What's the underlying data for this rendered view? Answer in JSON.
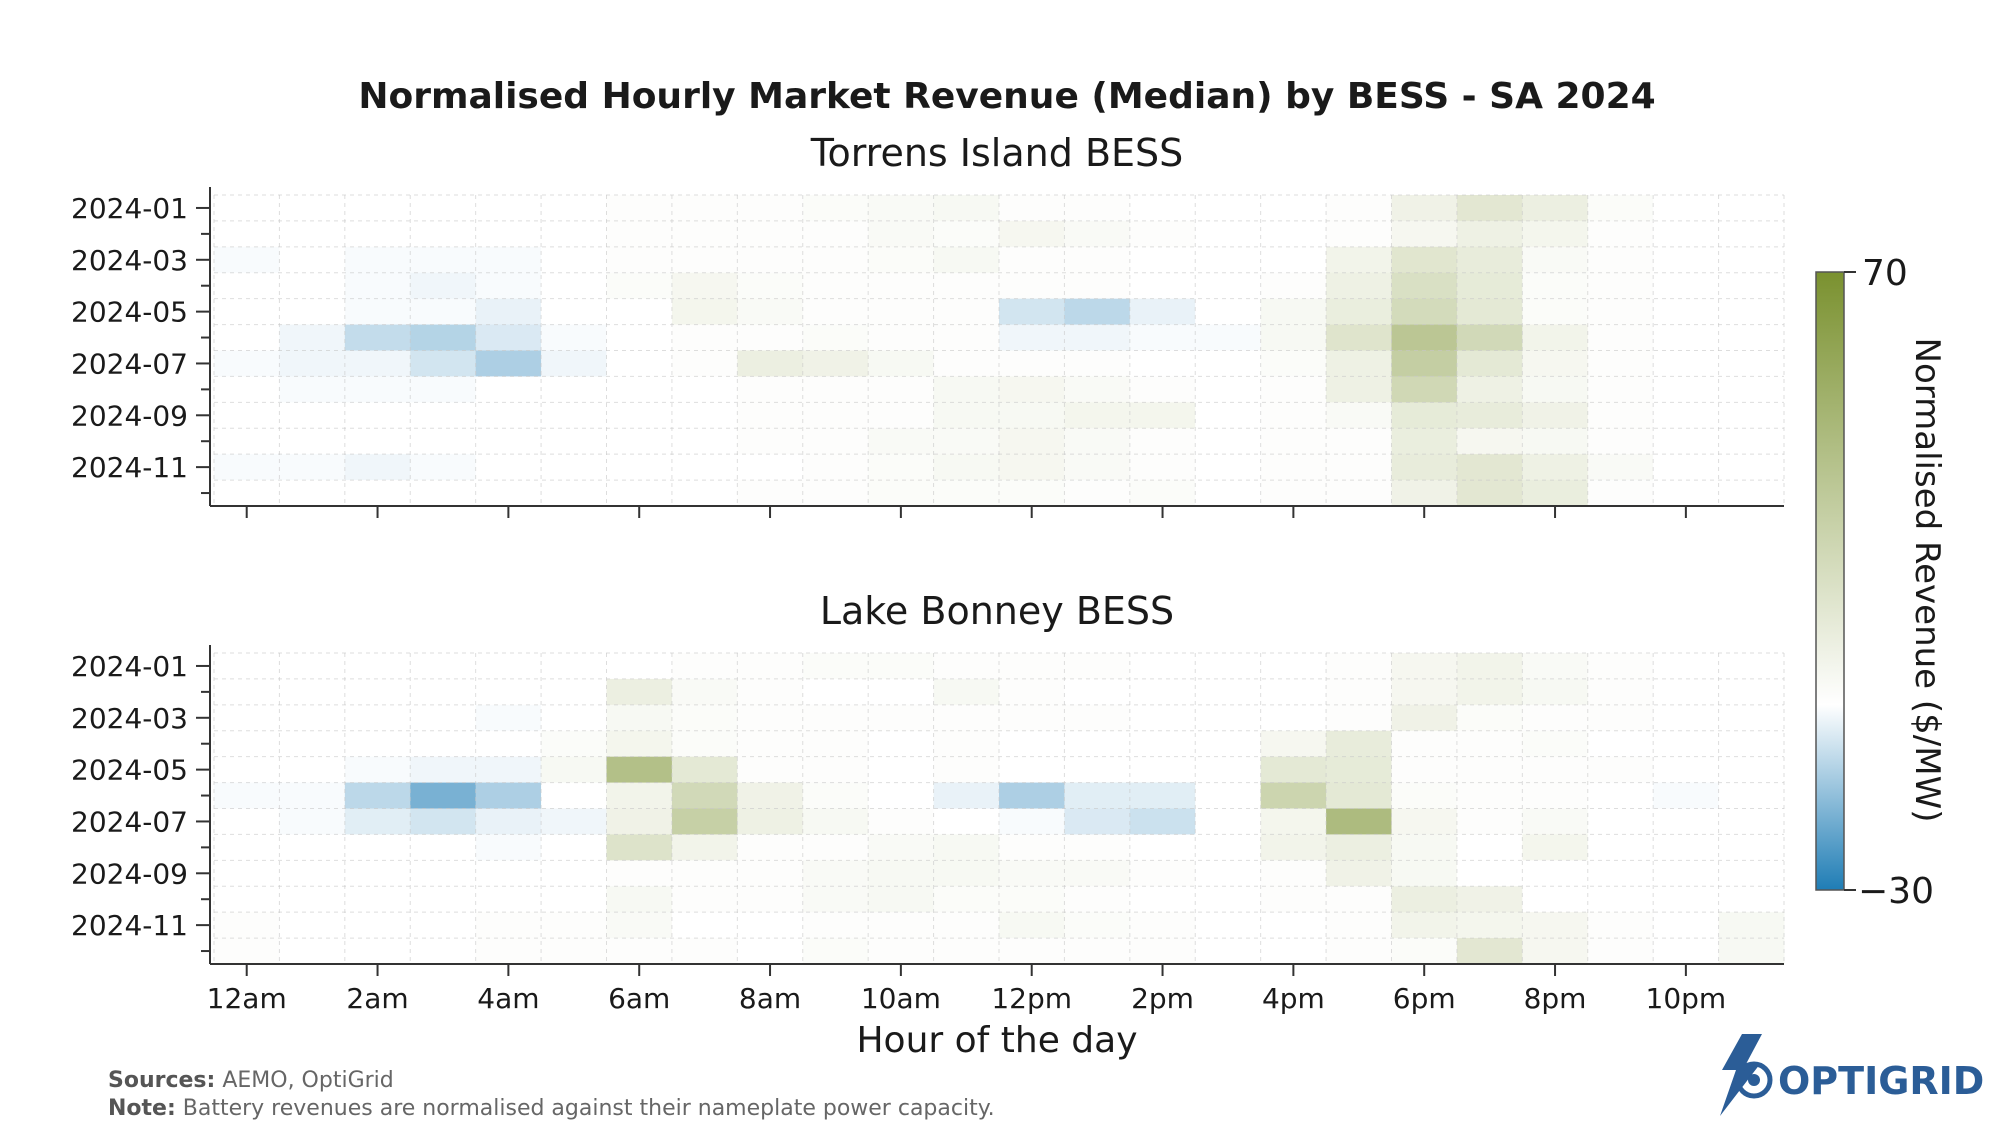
{
  "chart_data": {
    "type": "heatmap",
    "title": "Normalised Hourly Market Revenue (Median) by BESS - SA 2024",
    "xlabel": "Hour of the day",
    "x_ticks": [
      "12am",
      "2am",
      "4am",
      "6am",
      "8am",
      "10am",
      "12pm",
      "2pm",
      "4pm",
      "6pm",
      "8pm",
      "10pm"
    ],
    "y_ticks": [
      "2024-01",
      "2024-03",
      "2024-05",
      "2024-07",
      "2024-09",
      "2024-11"
    ],
    "rows": [
      "2024-01",
      "2024-02",
      "2024-03",
      "2024-04",
      "2024-05",
      "2024-06",
      "2024-07",
      "2024-08",
      "2024-09",
      "2024-10",
      "2024-11",
      "2024-12"
    ],
    "hours": [
      0,
      1,
      2,
      3,
      4,
      5,
      6,
      7,
      8,
      9,
      10,
      11,
      12,
      13,
      14,
      15,
      16,
      17,
      18,
      19,
      20,
      21,
      22,
      23
    ],
    "colorbar": {
      "label": "Normalised Revenue ($/MW)",
      "min": -30,
      "max": 70,
      "min_label": "−30",
      "max_label": "70",
      "colors": {
        "low": "#1f7db5",
        "mid": "#ffffff",
        "high": "#7a912f"
      }
    },
    "panels": [
      {
        "name": "Torrens Island BESS",
        "values": [
          [
            0,
            0,
            0,
            0,
            0,
            0,
            1,
            1,
            1,
            2,
            3,
            4,
            1,
            1,
            0,
            0,
            0,
            1,
            8,
            15,
            10,
            2,
            0,
            0
          ],
          [
            0,
            0,
            0,
            0,
            0,
            0,
            1,
            1,
            1,
            1,
            3,
            2,
            5,
            3,
            1,
            0,
            0,
            1,
            5,
            9,
            6,
            1,
            0,
            0
          ],
          [
            -1,
            0,
            -1,
            -1,
            -1,
            0,
            1,
            1,
            1,
            1,
            2,
            4,
            1,
            1,
            0,
            0,
            0,
            7,
            16,
            12,
            3,
            1,
            0,
            0
          ],
          [
            0,
            0,
            -1,
            -2,
            -1,
            0,
            2,
            5,
            2,
            1,
            1,
            1,
            1,
            1,
            0,
            0,
            1,
            9,
            20,
            13,
            2,
            1,
            0,
            0
          ],
          [
            0,
            0,
            -1,
            -1,
            -3,
            0,
            0,
            6,
            3,
            1,
            1,
            1,
            -6,
            -9,
            -3,
            0,
            4,
            11,
            23,
            14,
            2,
            1,
            0,
            0
          ],
          [
            0,
            -2,
            -8,
            -10,
            -5,
            -1,
            0,
            1,
            1,
            2,
            1,
            1,
            -2,
            -2,
            -1,
            -1,
            4,
            17,
            36,
            24,
            7,
            1,
            0,
            0
          ],
          [
            -1,
            -2,
            -2,
            -6,
            -11,
            -2,
            0,
            1,
            10,
            8,
            4,
            1,
            1,
            1,
            0,
            0,
            2,
            9,
            31,
            14,
            5,
            1,
            0,
            0
          ],
          [
            0,
            -1,
            -1,
            -1,
            0,
            0,
            0,
            0,
            1,
            1,
            1,
            4,
            5,
            3,
            1,
            0,
            1,
            9,
            25,
            9,
            4,
            1,
            0,
            0
          ],
          [
            0,
            0,
            0,
            0,
            0,
            0,
            0,
            0,
            1,
            1,
            1,
            4,
            4,
            6,
            6,
            0,
            1,
            3,
            13,
            12,
            8,
            1,
            0,
            0
          ],
          [
            0,
            0,
            0,
            0,
            0,
            0,
            0,
            0,
            1,
            1,
            3,
            3,
            5,
            3,
            1,
            0,
            1,
            1,
            11,
            5,
            4,
            1,
            0,
            0
          ],
          [
            -1,
            -1,
            -2,
            -1,
            0,
            0,
            0,
            0,
            0,
            1,
            2,
            4,
            5,
            3,
            1,
            0,
            1,
            1,
            12,
            15,
            9,
            3,
            0,
            0
          ],
          [
            0,
            0,
            0,
            0,
            0,
            0,
            0,
            0,
            1,
            1,
            2,
            2,
            2,
            1,
            2,
            0,
            1,
            1,
            8,
            15,
            11,
            1,
            0,
            0
          ]
        ]
      },
      {
        "name": "Lake Bonney BESS",
        "values": [
          [
            0,
            0,
            0,
            0,
            0,
            0,
            0,
            1,
            1,
            2,
            2,
            1,
            1,
            1,
            0,
            0,
            0,
            1,
            5,
            7,
            3,
            1,
            0,
            0
          ],
          [
            0,
            0,
            0,
            0,
            0,
            0,
            10,
            3,
            1,
            0,
            0,
            4,
            1,
            0,
            0,
            0,
            0,
            1,
            5,
            7,
            4,
            1,
            0,
            0
          ],
          [
            0,
            0,
            0,
            0,
            -1,
            0,
            4,
            2,
            1,
            1,
            1,
            1,
            1,
            1,
            0,
            0,
            0,
            1,
            8,
            2,
            1,
            1,
            0,
            0
          ],
          [
            0,
            0,
            0,
            0,
            0,
            2,
            6,
            2,
            1,
            1,
            0,
            1,
            0,
            0,
            0,
            0,
            5,
            12,
            1,
            1,
            2,
            0,
            0,
            0
          ],
          [
            0,
            0,
            -1,
            -2,
            -2,
            4,
            40,
            14,
            1,
            1,
            0,
            1,
            0,
            0,
            0,
            0,
            14,
            13,
            1,
            1,
            1,
            1,
            0,
            0
          ],
          [
            -1,
            -1,
            -9,
            -18,
            -11,
            0,
            7,
            24,
            8,
            2,
            0,
            -3,
            -11,
            -4,
            -4,
            0,
            27,
            14,
            2,
            1,
            1,
            0,
            -1,
            0
          ],
          [
            0,
            -1,
            -4,
            -6,
            -3,
            -2,
            8,
            30,
            9,
            4,
            1,
            0,
            -1,
            -5,
            -7,
            0,
            6,
            43,
            5,
            1,
            3,
            0,
            0,
            0
          ],
          [
            0,
            0,
            0,
            0,
            -1,
            0,
            18,
            7,
            1,
            1,
            3,
            4,
            1,
            1,
            0,
            0,
            7,
            10,
            4,
            0,
            6,
            0,
            0,
            0
          ],
          [
            0,
            0,
            0,
            0,
            0,
            0,
            1,
            1,
            1,
            3,
            4,
            4,
            3,
            3,
            1,
            0,
            1,
            8,
            4,
            0,
            0,
            0,
            0,
            0
          ],
          [
            0,
            0,
            0,
            0,
            0,
            0,
            4,
            1,
            1,
            3,
            4,
            2,
            2,
            1,
            0,
            0,
            1,
            1,
            10,
            8,
            0,
            0,
            0,
            0
          ],
          [
            1,
            0,
            0,
            0,
            1,
            1,
            3,
            0,
            0,
            1,
            1,
            1,
            4,
            2,
            1,
            0,
            0,
            1,
            7,
            6,
            5,
            1,
            0,
            4
          ],
          [
            1,
            0,
            0,
            0,
            1,
            1,
            1,
            1,
            0,
            2,
            1,
            1,
            1,
            1,
            1,
            0,
            0,
            1,
            2,
            15,
            5,
            1,
            0,
            4
          ]
        ]
      }
    ]
  },
  "footer": {
    "sources_label": "Sources:",
    "sources_text": " AEMO, OptiGrid",
    "note_label": "Note:",
    "note_text": " Battery revenues are normalised against their nameplate power capacity."
  },
  "logo": {
    "text": "OPTIGRID"
  }
}
